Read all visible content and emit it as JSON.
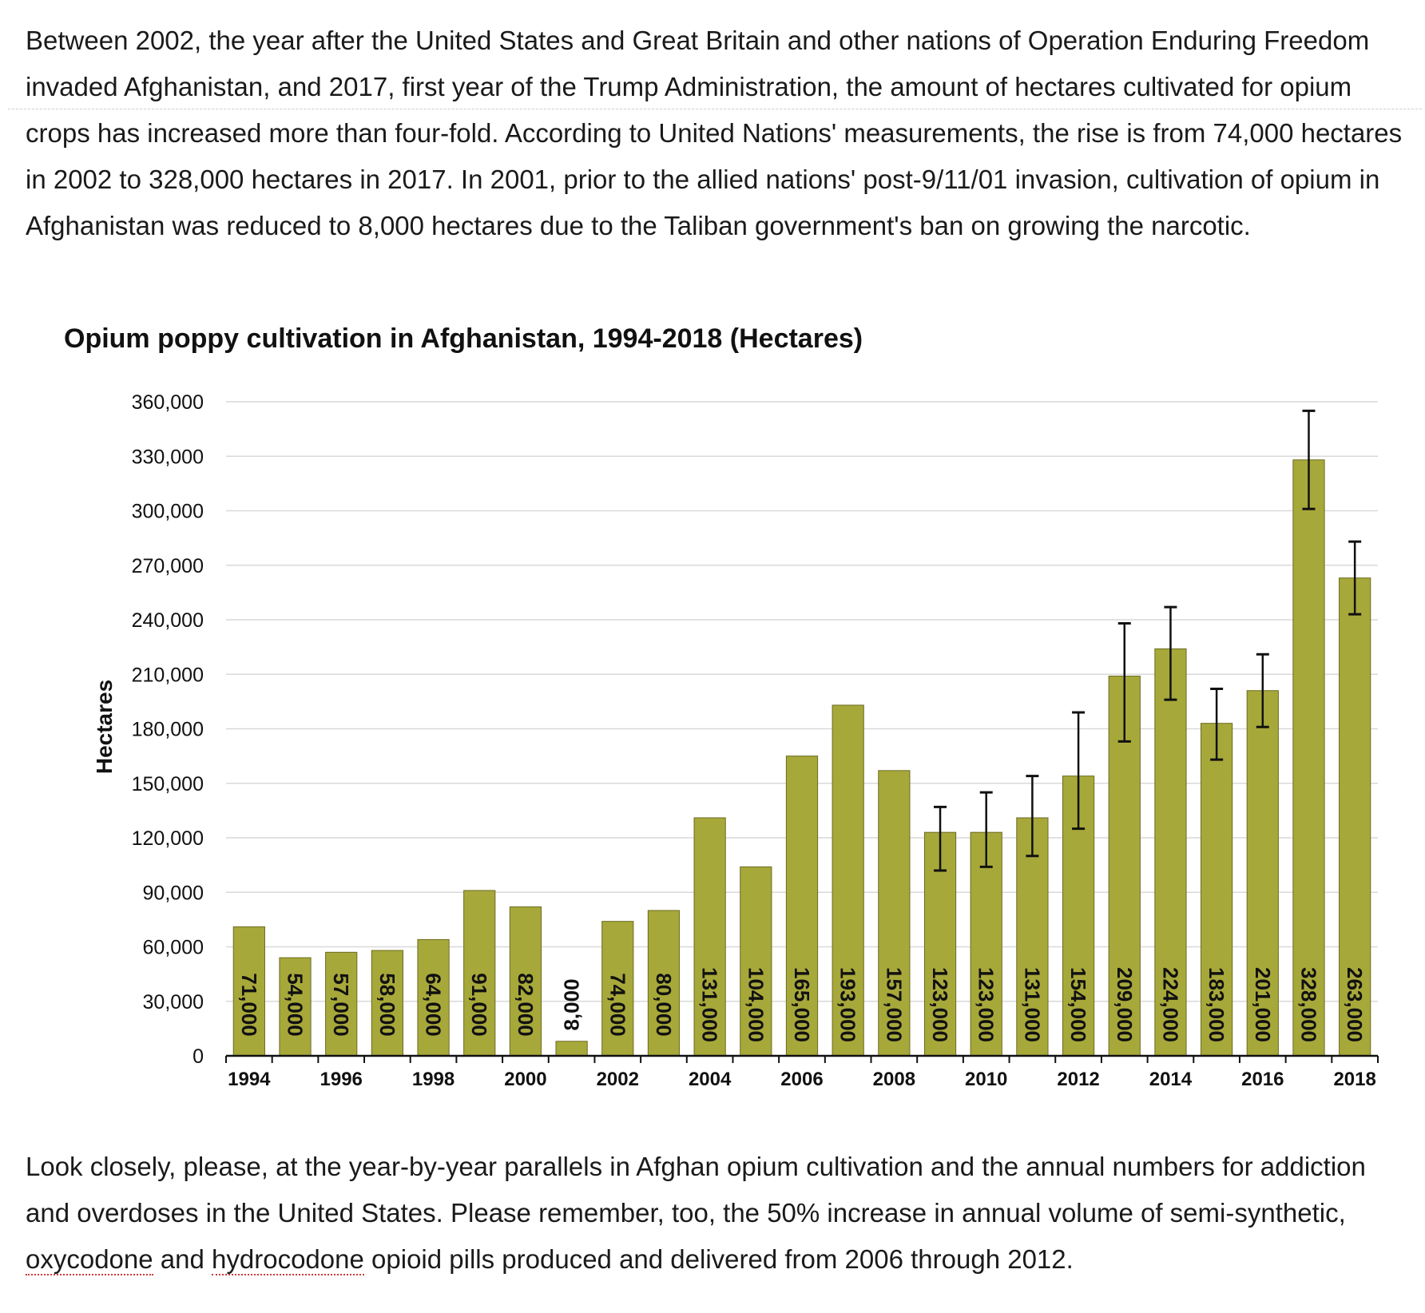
{
  "article": {
    "intro": [
      "Between 2002, the year after the United States and Great Britain and other nations of Operation Enduring Freedom invaded Afghanistan, and 2017, first year of the Trump Administration, the amount of hectares cultivated for opium crops has increased more than four-fold. According to United Nations' measurements, the rise is from 74,000 hectares in 2002 to 328,000 hectares in 2017. In 2001, prior to the allied nations' post-9/11/01 invasion, cultivation of opium in Afghanistan was reduced to 8,000 hectares due to the Taliban government's ban on growing the narcotic."
    ],
    "outro_before": "Look closely, please, at the year-by-year parallels in Afghan opium cultivation and the annual numbers for addiction and overdoses in the United States. Please remember, too, the 50% increase in annual volume of semi-synthetic, ",
    "outro_link1": "oxycodone",
    "outro_mid": " and ",
    "outro_link2": "hydrocodone",
    "outro_after": " opioid pills produced and delivered from 2006 through 2012."
  },
  "chart_data": {
    "type": "bar",
    "title": "Opium poppy cultivation in Afghanistan, 1994-2018  (Hectares)",
    "xlabel": "",
    "ylabel": "Hectares",
    "ylim": [
      0,
      360000
    ],
    "y_ticks": [
      0,
      30000,
      60000,
      90000,
      120000,
      150000,
      180000,
      210000,
      240000,
      270000,
      300000,
      330000,
      360000
    ],
    "y_tick_labels": [
      "0",
      "30,000",
      "60,000",
      "90,000",
      "120,000",
      "150,000",
      "180,000",
      "210,000",
      "240,000",
      "270,000",
      "300,000",
      "330,000",
      "360,000"
    ],
    "categories": [
      "1994",
      "1995",
      "1996",
      "1997",
      "1998",
      "1999",
      "2000",
      "2001",
      "2002",
      "2003",
      "2004",
      "2005",
      "2006",
      "2007",
      "2008",
      "2009",
      "2010",
      "2011",
      "2012",
      "2013",
      "2014",
      "2015",
      "2016",
      "2017",
      "2018"
    ],
    "x_tick_labels": [
      "1994",
      "1996",
      "1998",
      "2000",
      "2002",
      "2004",
      "2006",
      "2008",
      "2010",
      "2012",
      "2014",
      "2016",
      "2018"
    ],
    "values": [
      71000,
      54000,
      57000,
      58000,
      64000,
      91000,
      82000,
      8000,
      74000,
      80000,
      131000,
      104000,
      165000,
      193000,
      157000,
      123000,
      123000,
      131000,
      154000,
      209000,
      224000,
      183000,
      201000,
      328000,
      263000
    ],
    "data_labels": [
      "71,000",
      "54,000",
      "57,000",
      "58,000",
      "64,000",
      "91,000",
      "82,000",
      "8,000",
      "74,000",
      "80,000",
      "131,000",
      "104,000",
      "165,000",
      "193,000",
      "157,000",
      "123,000",
      "123,000",
      "131,000",
      "154,000",
      "209,000",
      "224,000",
      "183,000",
      "201,000",
      "328,000",
      "263,000"
    ],
    "error_bars": [
      null,
      null,
      null,
      null,
      null,
      null,
      null,
      null,
      null,
      null,
      null,
      null,
      null,
      null,
      null,
      [
        102000,
        137000
      ],
      [
        104000,
        145000
      ],
      [
        110000,
        154000
      ],
      [
        125000,
        189000
      ],
      [
        173000,
        238000
      ],
      [
        196000,
        247000
      ],
      [
        163000,
        202000
      ],
      [
        181000,
        221000
      ],
      [
        301000,
        355000
      ],
      [
        243000,
        283000
      ]
    ],
    "grid": true,
    "bar_color": "#a7a83a",
    "bar_edge_color": "#6b6b22",
    "grid_color": "#d9d9d9"
  }
}
